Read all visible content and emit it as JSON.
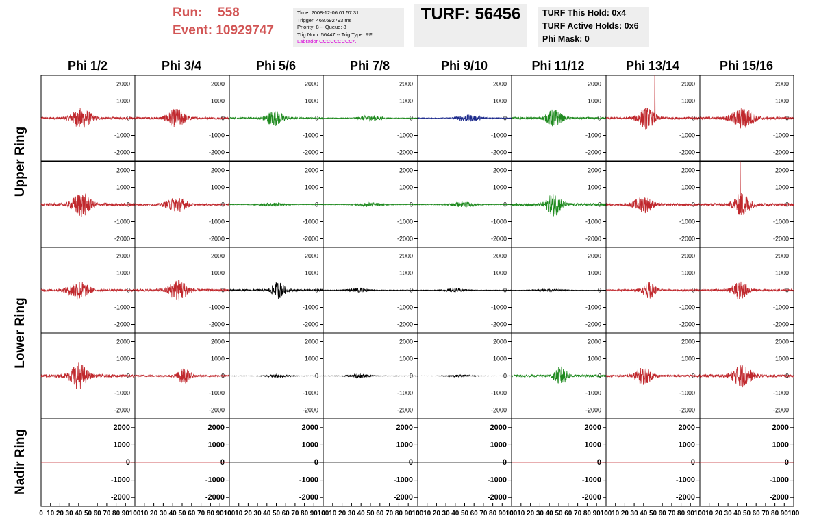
{
  "header": {
    "run_label": "Run:",
    "run_value": "558",
    "event_label": "Event:",
    "event_value": "10929747",
    "info_lines": [
      "Time: 2008-12-06 01:57:31",
      "Trigger: 468.692793 ms",
      "Priority: 8 -- Queue: 8",
      "Trig Num: 56447 -- Trig Type: RF"
    ],
    "info_magenta": "Labrador CCCCCCCCCA",
    "turf_title": "TURF: 56456",
    "hold_lines": [
      "TURF This Hold: 0x4",
      "TURF Active Holds: 0x6",
      "Phi Mask: 0"
    ]
  },
  "columns": [
    "Phi 1/2",
    "Phi 3/4",
    "Phi 5/6",
    "Phi 7/8",
    "Phi 9/10",
    "Phi 11/12",
    "Phi 13/14",
    "Phi 15/16"
  ],
  "ring_labels": [
    {
      "text": "Upper Ring",
      "rows": [
        0,
        1
      ]
    },
    {
      "text": "Lower Ring",
      "rows": [
        2,
        3
      ]
    },
    {
      "text": "Nadir Ring",
      "rows": [
        4
      ]
    }
  ],
  "colors": {
    "red": "#c0282d",
    "green": "#1f8a1f",
    "blue": "#1c2a8c",
    "black": "#000000"
  },
  "chart_data": {
    "type": "line",
    "grid": false,
    "x_range": [
      0,
      100
    ],
    "y_range": [
      -2500,
      2500
    ],
    "y_ticks": [
      2000,
      1000,
      0,
      -1000,
      -2000
    ],
    "x_ticks": [
      0,
      10,
      20,
      30,
      40,
      50,
      60,
      70,
      80,
      90,
      100
    ],
    "panels": [
      [
        {
          "color": "red",
          "center": 43,
          "amp": 560,
          "width": 12
        },
        {
          "color": "red",
          "center": 44,
          "amp": 520,
          "width": 11
        },
        {
          "color": "green",
          "center": 48,
          "amp": 420,
          "width": 11
        },
        {
          "color": "green",
          "center": 50,
          "amp": 160,
          "width": 14
        },
        {
          "color": "blue",
          "center": 55,
          "amp": 180,
          "width": 16
        },
        {
          "color": "green",
          "center": 45,
          "amp": 500,
          "width": 9
        },
        {
          "color": "red",
          "center": 43,
          "amp": 580,
          "width": 10,
          "spike": 52,
          "spike_amp": 2600
        },
        {
          "color": "red",
          "center": 46,
          "amp": 600,
          "width": 13
        }
      ],
      [
        {
          "color": "red",
          "center": 43,
          "amp": 680,
          "width": 11
        },
        {
          "color": "red",
          "center": 44,
          "amp": 420,
          "width": 12
        },
        {
          "color": "green",
          "center": 45,
          "amp": 110,
          "width": 16
        },
        {
          "color": "green",
          "center": 50,
          "amp": 110,
          "width": 16
        },
        {
          "color": "green",
          "center": 48,
          "amp": 150,
          "width": 14
        },
        {
          "color": "green",
          "center": 45,
          "amp": 620,
          "width": 9
        },
        {
          "color": "red",
          "center": 40,
          "amp": 480,
          "width": 11
        },
        {
          "color": "red",
          "center": 45,
          "amp": 650,
          "width": 10,
          "spike": 43,
          "spike_amp": 2600
        }
      ],
      [
        {
          "color": "red",
          "center": 40,
          "amp": 520,
          "width": 12
        },
        {
          "color": "red",
          "center": 46,
          "amp": 600,
          "width": 11
        },
        {
          "color": "black",
          "center": 52,
          "amp": 460,
          "width": 8
        },
        {
          "color": "black",
          "center": 37,
          "amp": 130,
          "width": 12
        },
        {
          "color": "black",
          "center": 40,
          "amp": 100,
          "width": 14
        },
        {
          "color": "black",
          "center": 40,
          "amp": 60,
          "width": 18
        },
        {
          "color": "red",
          "center": 46,
          "amp": 450,
          "width": 8
        },
        {
          "color": "red",
          "center": 43,
          "amp": 500,
          "width": 10
        }
      ],
      [
        {
          "color": "red",
          "center": 40,
          "amp": 720,
          "width": 10
        },
        {
          "color": "red",
          "center": 52,
          "amp": 420,
          "width": 8
        },
        {
          "color": "black",
          "center": 52,
          "amp": 90,
          "width": 14
        },
        {
          "color": "black",
          "center": 38,
          "amp": 120,
          "width": 12
        },
        {
          "color": "black",
          "center": 45,
          "amp": 60,
          "width": 16
        },
        {
          "color": "green",
          "center": 52,
          "amp": 520,
          "width": 8
        },
        {
          "color": "red",
          "center": 40,
          "amp": 480,
          "width": 10
        },
        {
          "color": "red",
          "center": 45,
          "amp": 640,
          "width": 11
        }
      ],
      [
        {
          "color": "red",
          "flat": true
        },
        {
          "color": "red",
          "flat": true
        },
        {
          "color": "black",
          "flat": true
        },
        {
          "color": "black",
          "flat": true
        },
        {
          "color": "black",
          "flat": true
        },
        {
          "color": "red",
          "flat": true
        },
        {
          "color": "red",
          "flat": true
        },
        {
          "color": "red",
          "flat": true
        }
      ]
    ]
  }
}
